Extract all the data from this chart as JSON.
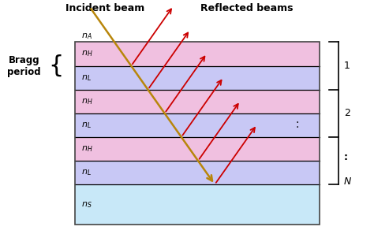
{
  "fig_width": 4.74,
  "fig_height": 2.97,
  "dpi": 100,
  "background_color": "#ffffff",
  "layers": [
    {
      "label": "n_H",
      "color": "#f0c0e0"
    },
    {
      "label": "n_L",
      "color": "#c8c8f5"
    },
    {
      "label": "n_H",
      "color": "#f0c0e0"
    },
    {
      "label": "n_L",
      "color": "#c8c8f5"
    },
    {
      "label": "n_H",
      "color": "#f0c0e0"
    },
    {
      "label": "n_L",
      "color": "#c8c8f5"
    }
  ],
  "substrate_color": "#c8e8f8",
  "substrate_label": "n_S",
  "incident_color": "#b8860b",
  "reflected_color": "#cc0000",
  "title_incident": "Incident beam",
  "title_reflected": "Reflected beams",
  "bragg_label": "Bragg\nperiod"
}
